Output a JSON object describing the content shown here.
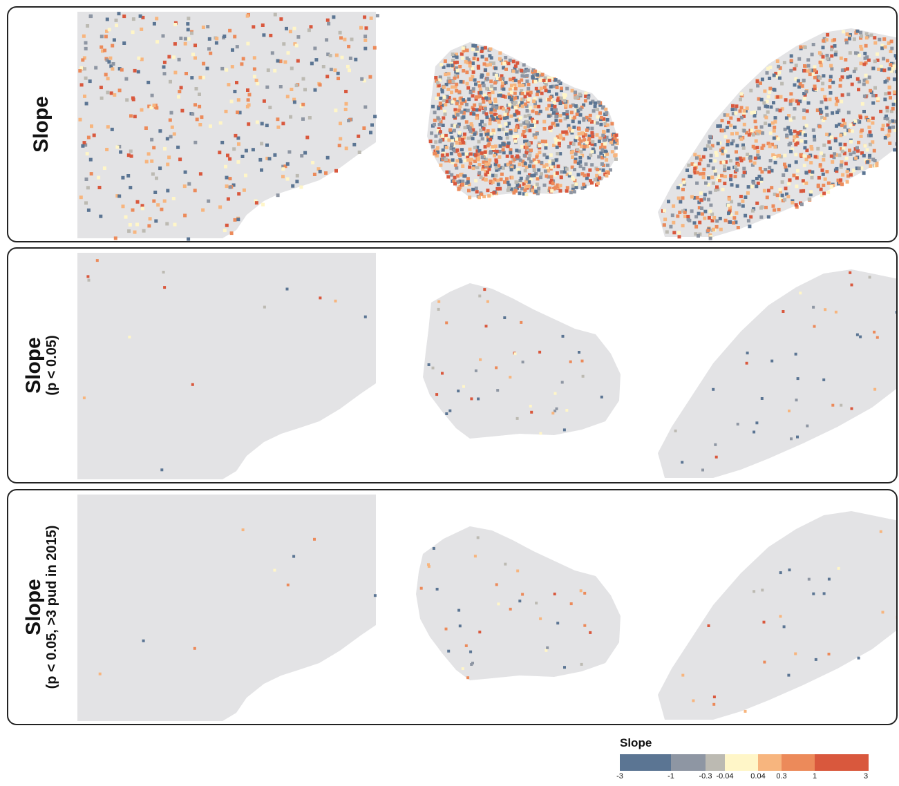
{
  "rows": [
    {
      "title": "Slope",
      "subtitle": ""
    },
    {
      "title": "Slope",
      "subtitle": "(p < 0.05)"
    },
    {
      "title": "Slope",
      "subtitle": "(p < 0.05, >3 pud in 2015)"
    }
  ],
  "legend": {
    "title": "Slope",
    "ticks": [
      "-3",
      "-1",
      "-0.3",
      "-0.04",
      "0.04",
      "0.3",
      "1",
      "3"
    ],
    "colors": [
      "#5b7593",
      "#8e96a3",
      "#bcbab2",
      "#fff6c8",
      "#f7b57e",
      "#ec8a5a",
      "#d9583d"
    ]
  },
  "colors": {
    "land": "#e3e3e5",
    "border": "#222222"
  }
}
